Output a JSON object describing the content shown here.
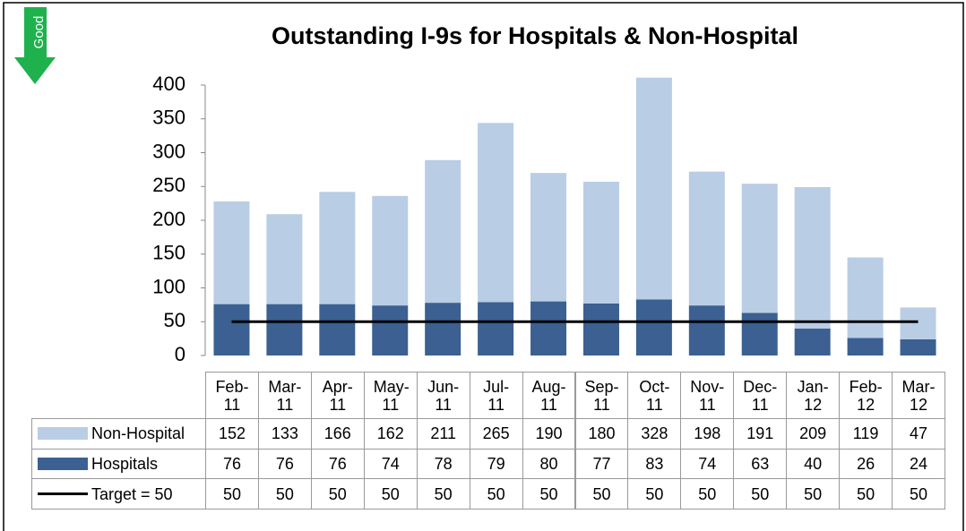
{
  "chart_data": {
    "type": "bar",
    "stacked": true,
    "badge": "Good",
    "title": "Outstanding I-9s for Hospitals & Non-Hospital",
    "categories": [
      "Feb-11",
      "Mar-11",
      "Apr-11",
      "May-11",
      "Jun-11",
      "Jul-11",
      "Aug-11",
      "Sep-11",
      "Oct-11",
      "Nov-11",
      "Dec-11",
      "Jan-12",
      "Feb-12",
      "Mar-12"
    ],
    "series": [
      {
        "name": "Non-Hospital",
        "color": "#b9cde5",
        "values": [
          152,
          133,
          166,
          162,
          211,
          265,
          190,
          180,
          328,
          198,
          191,
          209,
          119,
          47
        ]
      },
      {
        "name": "Hospitals",
        "color": "#3b6091",
        "values": [
          76,
          76,
          76,
          74,
          78,
          79,
          80,
          77,
          83,
          74,
          63,
          40,
          26,
          24
        ]
      },
      {
        "name": "Target = 50",
        "type": "line",
        "color": "#000000",
        "values": [
          50,
          50,
          50,
          50,
          50,
          50,
          50,
          50,
          50,
          50,
          50,
          50,
          50,
          50
        ]
      }
    ],
    "ylim": [
      0,
      400
    ],
    "yticks": [
      0,
      50,
      100,
      150,
      200,
      250,
      300,
      350,
      400
    ]
  }
}
